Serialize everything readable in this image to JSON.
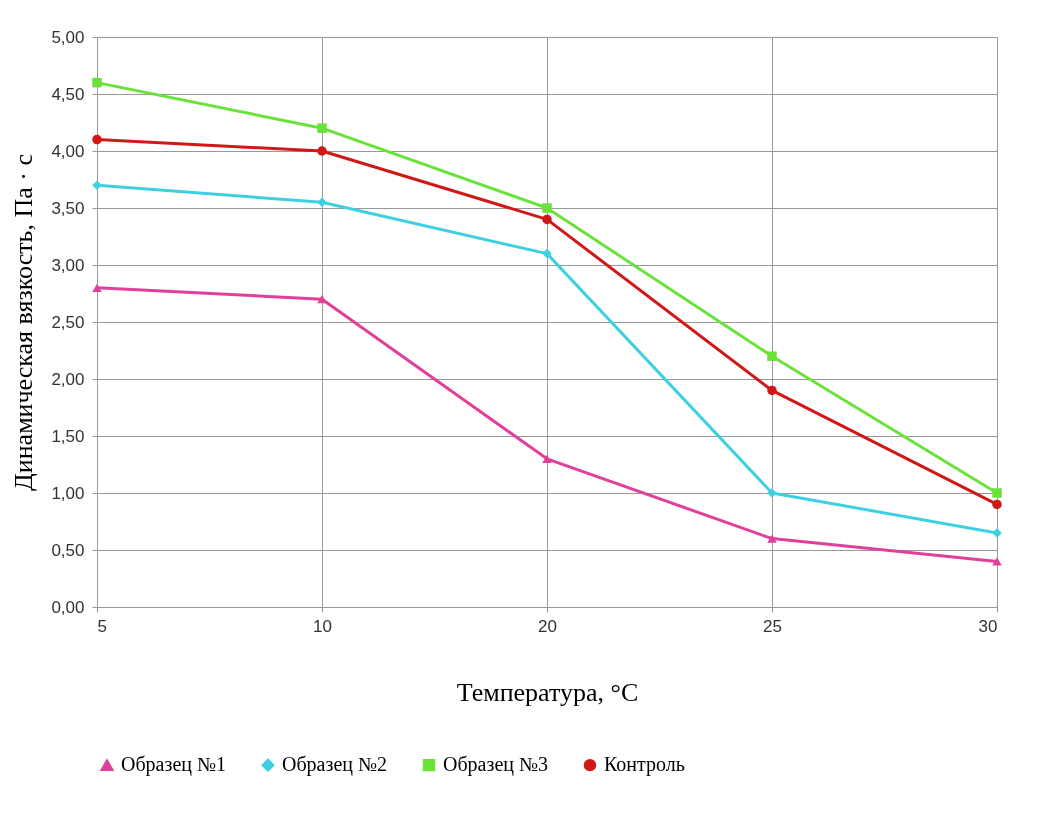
{
  "chart_data": {
    "type": "line",
    "xlabel": "Температура, °C",
    "ylabel": "Динамическая вязкость, Па · с",
    "categories": [
      "5",
      "10",
      "20",
      "25",
      "30"
    ],
    "series": [
      {
        "name": "Образец №1",
        "color": "#e0409a",
        "marker": "triangle",
        "values": [
          2.8,
          2.7,
          1.3,
          0.6,
          0.4
        ]
      },
      {
        "name": "Образец №2",
        "color": "#3fd0e0",
        "marker": "diamond",
        "values": [
          3.7,
          3.55,
          3.1,
          1.0,
          0.65
        ]
      },
      {
        "name": "Образец №3",
        "color": "#6be23a",
        "marker": "square",
        "values": [
          4.6,
          4.2,
          3.5,
          2.2,
          1.0
        ]
      },
      {
        "name": "Контроль",
        "color": "#d01818",
        "marker": "circle",
        "values": [
          4.1,
          4.0,
          3.4,
          1.9,
          0.9
        ]
      }
    ],
    "ylim": [
      0,
      5
    ],
    "yticks": [
      {
        "value": 0,
        "label": "0,00"
      },
      {
        "value": 0.5,
        "label": "0,50"
      },
      {
        "value": 1,
        "label": "1,00"
      },
      {
        "value": 1.5,
        "label": "1,50"
      },
      {
        "value": 2,
        "label": "2,00"
      },
      {
        "value": 2.5,
        "label": "2,50"
      },
      {
        "value": 3,
        "label": "3,00"
      },
      {
        "value": 3.5,
        "label": "3,50"
      },
      {
        "value": 4,
        "label": "4,00"
      },
      {
        "value": 4.5,
        "label": "4,50"
      },
      {
        "value": 5,
        "label": "5,00"
      }
    ],
    "grid": true,
    "legend": "bottom",
    "line_style": "solid"
  }
}
